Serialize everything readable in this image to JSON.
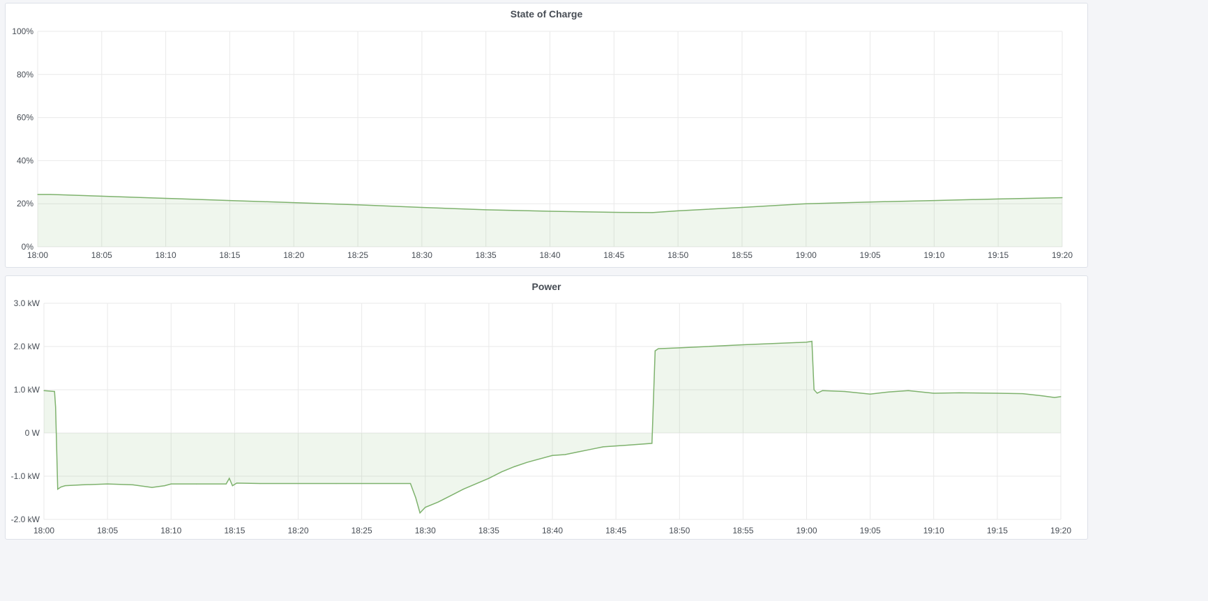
{
  "colors": {
    "line": "#7eb26d",
    "fill": "#7eb26d",
    "grid": "#e9e9e9",
    "text": "#464c54"
  },
  "chart_data": [
    {
      "type": "area",
      "title": "State of Charge",
      "ylim": [
        0,
        100
      ],
      "yticks": [
        0,
        20,
        40,
        60,
        80,
        100
      ],
      "ytick_labels": [
        "0%",
        "20%",
        "40%",
        "60%",
        "80%",
        "100%"
      ],
      "xlim": [
        "18:00",
        "19:20"
      ],
      "xtick_labels": [
        "18:00",
        "18:05",
        "18:10",
        "18:15",
        "18:20",
        "18:25",
        "18:30",
        "18:35",
        "18:40",
        "18:45",
        "18:50",
        "18:55",
        "19:00",
        "19:05",
        "19:10",
        "19:15",
        "19:20"
      ],
      "grid": true,
      "x": [
        "18:00:00",
        "18:01:00",
        "18:05:00",
        "18:10:00",
        "18:15:00",
        "18:20:00",
        "18:25:00",
        "18:30:00",
        "18:35:00",
        "18:40:00",
        "18:45:00",
        "18:48:00",
        "18:50:00",
        "18:55:00",
        "19:00:00",
        "19:05:00",
        "19:10:00",
        "19:15:00",
        "19:20:00"
      ],
      "values": [
        24.3,
        24.3,
        23.5,
        22.5,
        21.5,
        20.5,
        19.5,
        18.3,
        17.2,
        16.5,
        16.0,
        15.9,
        16.7,
        18.3,
        20.0,
        20.8,
        21.5,
        22.2,
        22.8
      ]
    },
    {
      "type": "area",
      "title": "Power",
      "ylim": [
        -2.0,
        3.0
      ],
      "yticks": [
        -2,
        -1,
        0,
        1,
        2,
        3
      ],
      "ytick_labels": [
        "-2.0 kW",
        "-1.0 kW",
        "0 W",
        "1.0 kW",
        "2.0 kW",
        "3.0 kW"
      ],
      "xlim": [
        "18:00",
        "19:20"
      ],
      "xtick_labels": [
        "18:00",
        "18:05",
        "18:10",
        "18:15",
        "18:20",
        "18:25",
        "18:30",
        "18:35",
        "18:40",
        "18:45",
        "18:50",
        "18:55",
        "19:00",
        "19:05",
        "19:10",
        "19:15",
        "19:20"
      ],
      "grid": true,
      "unit": "kW",
      "x": [
        "18:00:00",
        "18:00:50",
        "18:00:55",
        "18:01:05",
        "18:01:20",
        "18:01:40",
        "18:03:00",
        "18:05:00",
        "18:07:00",
        "18:08:30",
        "18:09:30",
        "18:10:00",
        "18:12:00",
        "18:14:20",
        "18:14:35",
        "18:14:50",
        "18:15:10",
        "18:17:00",
        "18:20:00",
        "18:23:00",
        "18:25:00",
        "18:28:50",
        "18:29:15",
        "18:29:35",
        "18:30:00",
        "18:31:00",
        "18:32:00",
        "18:33:00",
        "18:35:00",
        "18:36:00",
        "18:37:00",
        "18:38:00",
        "18:40:00",
        "18:41:00",
        "18:42:00",
        "18:43:00",
        "18:44:00",
        "18:45:00",
        "18:46:00",
        "18:47:50",
        "18:48:05",
        "18:48:20",
        "18:50:00",
        "18:55:00",
        "19:00:00",
        "19:00:25",
        "19:00:35",
        "19:00:50",
        "19:01:15",
        "19:03:00",
        "19:05:00",
        "19:06:30",
        "19:08:00",
        "19:10:00",
        "19:12:00",
        "19:15:00",
        "19:17:00",
        "19:18:30",
        "19:19:30",
        "19:20:00"
      ],
      "values": [
        0.98,
        0.96,
        0.6,
        -1.3,
        -1.25,
        -1.22,
        -1.2,
        -1.18,
        -1.2,
        -1.26,
        -1.22,
        -1.18,
        -1.18,
        -1.18,
        -1.05,
        -1.22,
        -1.16,
        -1.17,
        -1.17,
        -1.17,
        -1.17,
        -1.17,
        -1.5,
        -1.85,
        -1.72,
        -1.6,
        -1.45,
        -1.3,
        -1.05,
        -0.9,
        -0.78,
        -0.68,
        -0.52,
        -0.5,
        -0.44,
        -0.38,
        -0.32,
        -0.3,
        -0.28,
        -0.24,
        1.9,
        1.95,
        1.97,
        2.04,
        2.1,
        2.12,
        1.0,
        0.92,
        0.98,
        0.96,
        0.9,
        0.95,
        0.98,
        0.92,
        0.93,
        0.92,
        0.91,
        0.86,
        0.82,
        0.84
      ]
    }
  ]
}
